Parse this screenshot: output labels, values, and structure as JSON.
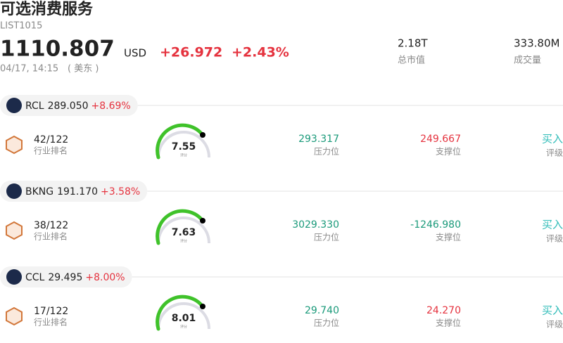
{
  "header": {
    "title": "可选消费服务",
    "code": "LIST1015",
    "price": "1110.807",
    "currency": "USD",
    "change": "+26.972",
    "change_pct": "+2.43%",
    "time": "04/17, 14:15",
    "timezone": "( 美东 )",
    "stats": [
      {
        "value": "2.18T",
        "label": "总市值"
      },
      {
        "value": "333.80M",
        "label": "成交量"
      }
    ]
  },
  "stocks": [
    {
      "ticker": "RCL",
      "price": "289.050",
      "change": "+8.69%",
      "rank": "42/122",
      "rank_label": "行业排名",
      "score": "7.55",
      "score_label": "评分",
      "resistance": "293.317",
      "resistance_label": "压力位",
      "support": "249.667",
      "support_label": "支撑位",
      "rating": "买入",
      "rating_label": "评级"
    },
    {
      "ticker": "BKNG",
      "price": "191.170",
      "change": "+3.58%",
      "rank": "38/122",
      "rank_label": "行业排名",
      "score": "7.63",
      "score_label": "评分",
      "resistance": "3029.330",
      "resistance_label": "压力位",
      "support": "-1246.980",
      "support_label": "支撑位",
      "rating": "买入",
      "rating_label": "评级"
    },
    {
      "ticker": "CCL",
      "price": "29.495",
      "change": "+8.00%",
      "rank": "17/122",
      "rank_label": "行业排名",
      "score": "8.01",
      "score_label": "评分",
      "resistance": "29.740",
      "resistance_label": "压力位",
      "support": "24.270",
      "support_label": "支撑位",
      "rating": "买入",
      "rating_label": "评级"
    }
  ]
}
